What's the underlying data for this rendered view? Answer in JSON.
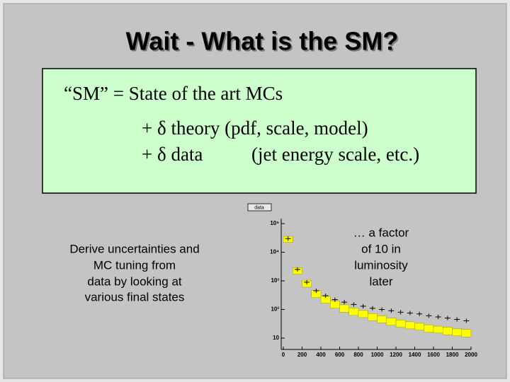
{
  "slide": {
    "title": "Wait - What is the SM?",
    "box": {
      "lines": [
        "“SM” = State of the art MCs",
        "+ δ theory (pdf, scale, model)",
        "+ δ data",
        "(jet energy scale, etc.)"
      ]
    },
    "left_note": [
      "Derive uncertainties and",
      "MC tuning from",
      "data by looking at",
      "various final states"
    ],
    "right_note": [
      "… a factor",
      "of 10 in",
      "luminosity",
      "later"
    ]
  },
  "chart_data": {
    "type": "histogram",
    "log_y": true,
    "xlim": [
      0,
      2000
    ],
    "xticks": [
      0,
      200,
      400,
      600,
      800,
      1000,
      1200,
      1400,
      1600,
      1800,
      2000
    ],
    "ylim": [
      4,
      150000
    ],
    "yticks": [
      10,
      {
        "value": 100,
        "label": "10²"
      },
      {
        "value": 1000,
        "label": "10³"
      },
      {
        "value": 10000,
        "label": "10⁴"
      },
      {
        "value": 100000,
        "label": "10⁵"
      }
    ],
    "bins": [
      0,
      100,
      200,
      300,
      400,
      500,
      600,
      700,
      800,
      900,
      1000,
      1100,
      1200,
      1300,
      1400,
      1500,
      1600,
      1700,
      1800,
      1900,
      2000
    ],
    "series": [
      {
        "name": "data",
        "color": "#000000",
        "x": [
          50,
          150,
          250,
          350,
          450,
          550,
          650,
          750,
          850,
          950,
          1050,
          1150,
          1250,
          1350,
          1450,
          1550,
          1650,
          1750,
          1850,
          1950
        ],
        "values": [
          30000,
          2500,
          900,
          450,
          300,
          220,
          180,
          150,
          130,
          110,
          100,
          90,
          80,
          75,
          70,
          60,
          55,
          50,
          45,
          40
        ]
      },
      {
        "color": "#ffff00",
        "low": [
          22000,
          1700,
          600,
          260,
          165,
          110,
          80,
          62,
          52,
          41,
          34,
          28,
          24,
          21,
          19,
          16,
          15,
          13,
          12,
          11
        ],
        "high": [
          36000,
          2900,
          1050,
          460,
          290,
          200,
          145,
          112,
          92,
          72,
          60,
          50,
          43,
          37,
          33,
          29,
          26,
          24,
          21,
          20
        ]
      }
    ]
  }
}
